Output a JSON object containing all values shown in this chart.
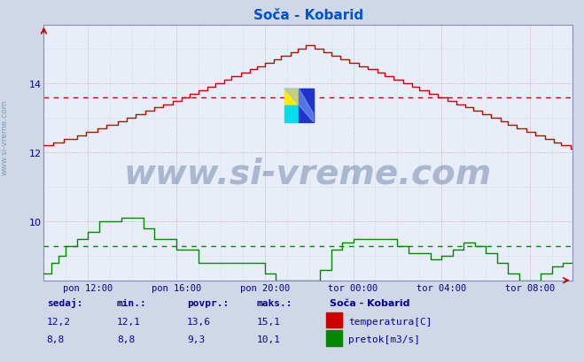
{
  "title": "Soča - Kobarid",
  "title_color": "#0055cc",
  "bg_color": "#d0d8e8",
  "plot_bg_color": "#e8eef8",
  "x_tick_labels": [
    "pon 12:00",
    "pon 16:00",
    "pon 20:00",
    "tor 00:00",
    "tor 04:00",
    "tor 08:00"
  ],
  "y_ticks": [
    10,
    12,
    14
  ],
  "ylim": [
    8.3,
    15.7
  ],
  "xlim": [
    0,
    287
  ],
  "temp_color": "#cc0000",
  "flow_color": "#008800",
  "temp_avg_line": 13.6,
  "flow_avg_line": 9.3,
  "watermark_text": "www.si-vreme.com",
  "watermark_color": "#1a3a7a",
  "sidebar_text": "www.si-vreme.com",
  "sidebar_color": "#7090aa",
  "footer_labels": [
    "sedaj:",
    "min.:",
    "povpr.:",
    "maks.:"
  ],
  "footer_temp": [
    "12,2",
    "12,1",
    "13,6",
    "15,1"
  ],
  "footer_flow": [
    "8,8",
    "8,8",
    "9,3",
    "10,1"
  ],
  "footer_color": "#000099",
  "legend_title": "Soča - Kobarid",
  "legend_temp_label": "temperatura[C]",
  "legend_flow_label": "pretok[m3/s]",
  "tick_positions": [
    24,
    72,
    120,
    168,
    216,
    264
  ]
}
